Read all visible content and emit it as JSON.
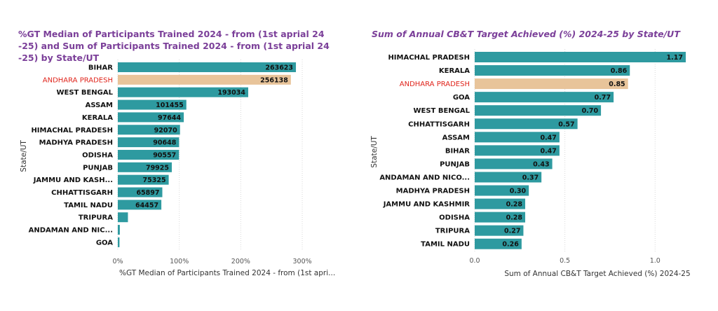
{
  "chart_data": [
    {
      "type": "bar",
      "orientation": "horizontal",
      "title": "%GT Median of Participants Trained 2024 - from (1st aprial 24 -25) and Sum of Participants Trained 2024 - from (1st aprial 24 -25) by State/UT",
      "xlabel": "%GT Median of Participants Trained 2024 - from (1st aprial 24 -25)",
      "ylabel": "State/UT",
      "categories": [
        "BIHAR",
        "ANDHARA PRADESH",
        "WEST BENGAL",
        "ASSAM",
        "KERALA",
        "HIMACHAL PRADESH",
        "MADHYA PRADESH",
        "ODISHA",
        "PUNJAB",
        "JAMMU AND KASH...",
        "CHHATTISGARH",
        "TAMIL NADU",
        "TRIPURA",
        "ANDAMAN AND NIC...",
        "GOA"
      ],
      "values": [
        263623,
        256138,
        193034,
        101455,
        97644,
        92070,
        90648,
        90557,
        79925,
        75325,
        65897,
        64457,
        15000,
        3000,
        2500
      ],
      "labels": [
        "263623",
        "256138",
        "193034",
        "101455",
        "97644",
        "92070",
        "90648",
        "90557",
        "79925",
        "75325",
        "65897",
        "64457",
        "",
        "",
        ""
      ],
      "highlight_index": 1,
      "xlim": [
        0,
        330000
      ],
      "xtick_values": [
        0,
        91000,
        182000,
        273000
      ],
      "xtick_labels": [
        "0%",
        "100%",
        "200%",
        "300%"
      ],
      "grid": true
    },
    {
      "type": "bar",
      "orientation": "horizontal",
      "title": "Sum of Annual CB&T Target Achieved (%) 2024-25 by State/UT",
      "xlabel": "Sum of Annual CB&T Target Achieved (%) 2024-25",
      "ylabel": "State/UT",
      "categories": [
        "HIMACHAL PRADESH",
        "KERALA",
        "ANDHARA PRADESH",
        "GOA",
        "WEST BENGAL",
        "CHHATTISGARH",
        "ASSAM",
        "BIHAR",
        "PUNJAB",
        "ANDAMAN AND NICO...",
        "MADHYA PRADESH",
        "JAMMU AND KASHMIR",
        "ODISHA",
        "TRIPURA",
        "TAMIL NADU"
      ],
      "values": [
        1.17,
        0.86,
        0.85,
        0.77,
        0.7,
        0.57,
        0.47,
        0.47,
        0.43,
        0.37,
        0.3,
        0.28,
        0.28,
        0.27,
        0.26
      ],
      "labels": [
        "1.17",
        "0.86",
        "0.85",
        "0.77",
        "0.70",
        "0.57",
        "0.47",
        "0.47",
        "0.43",
        "0.37",
        "0.30",
        "0.28",
        "0.28",
        "0.27",
        "0.26"
      ],
      "highlight_index": 2,
      "xlim": [
        0,
        1.17
      ],
      "xtick_values": [
        0,
        0.5,
        1.0
      ],
      "xtick_labels": [
        "0.0",
        "0.5",
        "1.0"
      ],
      "grid": true
    }
  ],
  "colors": {
    "bar": "#2e9aa0",
    "highlight_bar": "#e8c49a",
    "highlight_label": "#e0241b",
    "title": "#7b3f99",
    "grid": "#d8d8d8"
  }
}
